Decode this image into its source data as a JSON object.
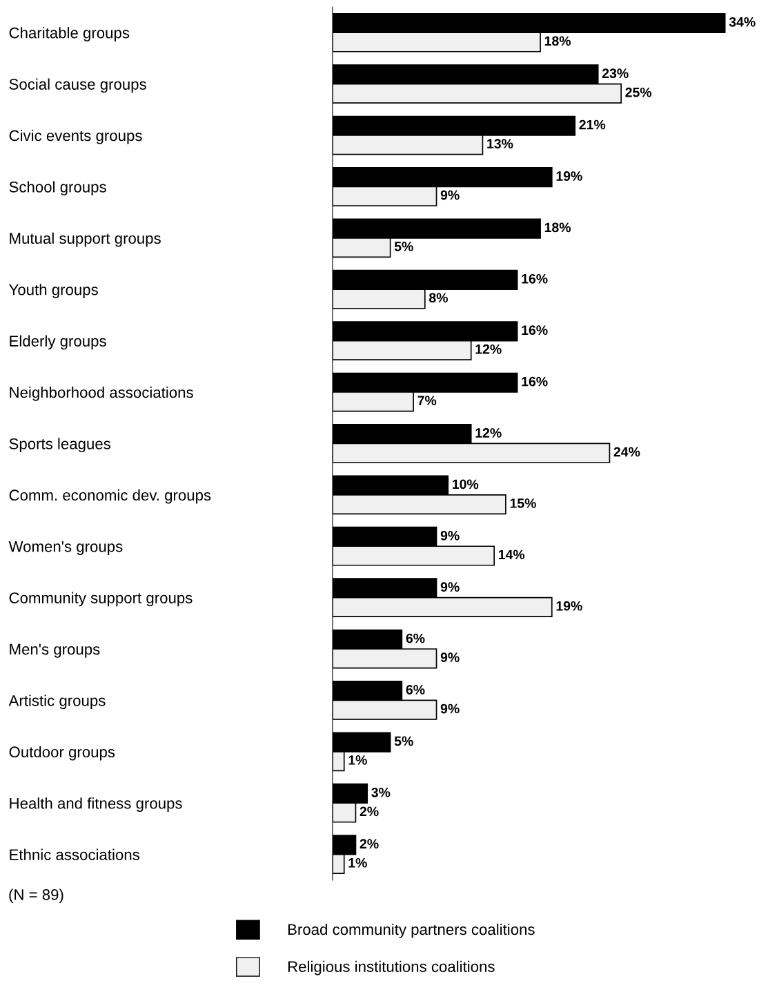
{
  "chart_data": {
    "type": "bar",
    "orientation": "horizontal",
    "categories": [
      "Charitable groups",
      "Social cause groups",
      "Civic events groups",
      "School groups",
      "Mutual support groups",
      "Youth groups",
      "Elderly groups",
      "Neighborhood associations",
      "Sports leagues",
      "Comm. economic dev. groups",
      "Women's groups",
      "Community support groups",
      "Men's groups",
      "Artistic groups",
      "Outdoor groups",
      "Health and fitness groups",
      "Ethnic associations"
    ],
    "series": [
      {
        "name": "Broad community partners coalitions",
        "color": "#000000",
        "values": [
          34,
          23,
          21,
          19,
          18,
          16,
          16,
          16,
          12,
          10,
          9,
          9,
          6,
          6,
          5,
          3,
          2
        ],
        "value_labels": [
          "34%",
          "23%",
          "21%",
          "19%",
          "18%",
          "16%",
          "16%",
          "16%",
          "12%",
          "10%",
          "9%",
          "9%",
          "6%",
          "6%",
          "5%",
          "3%",
          "2%"
        ]
      },
      {
        "name": "Religious institutions coalitions",
        "color": "#f0f0f0",
        "values": [
          18,
          25,
          13,
          9,
          5,
          8,
          12,
          7,
          24,
          15,
          14,
          19,
          9,
          9,
          1,
          2,
          1
        ],
        "value_labels": [
          "18%",
          "25%",
          "13%",
          "9%",
          "5%",
          "8%",
          "12%",
          "7%",
          "24%",
          "15%",
          "14%",
          "19%",
          "9%",
          "9%",
          "1%",
          "2%",
          "1%"
        ]
      }
    ],
    "annotations": [
      "(N = 89)"
    ],
    "legend": "bottom",
    "grid": false,
    "tick_labels": "y"
  }
}
